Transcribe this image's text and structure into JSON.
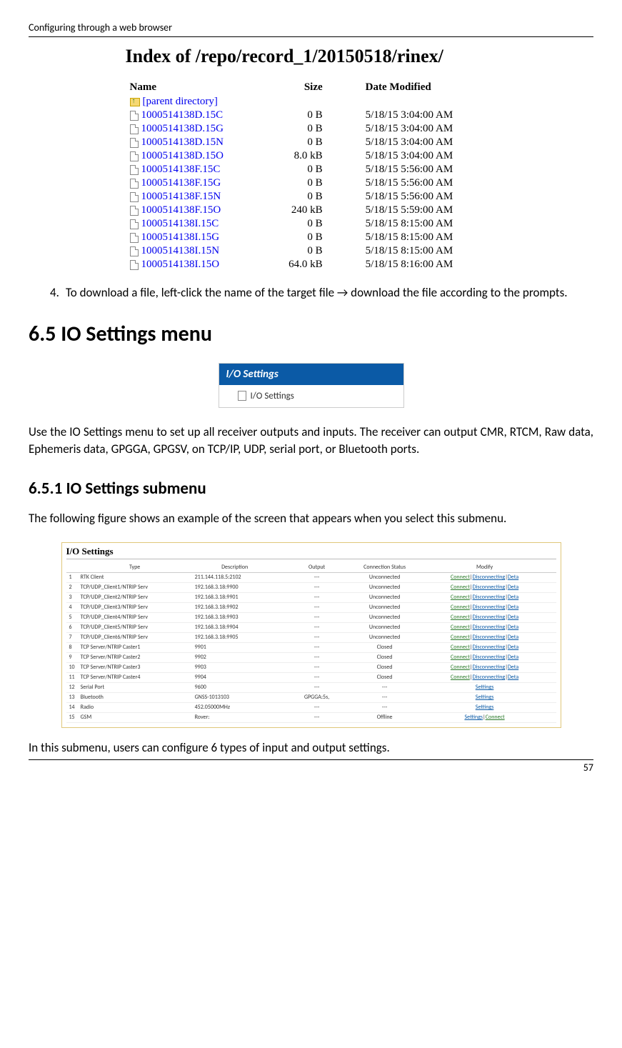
{
  "pageHeader": "Configuring through a web browser",
  "pageNumber": "57",
  "dirListing": {
    "title": "Index of /repo/record_1/20150518/rinex/",
    "headers": [
      "Name",
      "Size",
      "Date Modified"
    ],
    "parentLabel": "[parent directory]",
    "rows": [
      {
        "name": "1000514138D.15C",
        "size": "0 B",
        "date": "5/18/15 3:04:00 AM"
      },
      {
        "name": "1000514138D.15G",
        "size": "0 B",
        "date": "5/18/15 3:04:00 AM"
      },
      {
        "name": "1000514138D.15N",
        "size": "0 B",
        "date": "5/18/15 3:04:00 AM"
      },
      {
        "name": "1000514138D.15O",
        "size": "8.0 kB",
        "date": "5/18/15 3:04:00 AM"
      },
      {
        "name": "1000514138F.15C",
        "size": "0 B",
        "date": "5/18/15 5:56:00 AM"
      },
      {
        "name": "1000514138F.15G",
        "size": "0 B",
        "date": "5/18/15 5:56:00 AM"
      },
      {
        "name": "1000514138F.15N",
        "size": "0 B",
        "date": "5/18/15 5:56:00 AM"
      },
      {
        "name": "1000514138F.15O",
        "size": "240 kB",
        "date": "5/18/15 5:59:00 AM"
      },
      {
        "name": "1000514138I.15C",
        "size": "0 B",
        "date": "5/18/15 8:15:00 AM"
      },
      {
        "name": "1000514138I.15G",
        "size": "0 B",
        "date": "5/18/15 8:15:00 AM"
      },
      {
        "name": "1000514138I.15N",
        "size": "0 B",
        "date": "5/18/15 8:15:00 AM"
      },
      {
        "name": "1000514138I.15O",
        "size": "64.0 kB",
        "date": "5/18/15 8:16:00 AM"
      }
    ]
  },
  "step4": {
    "num": "4.",
    "text": "To download a file, left-click the name of the target file → download the file according to the prompts."
  },
  "section": "6.5  IO Settings menu",
  "ioMenu": {
    "header": "I/O Settings",
    "item": "I/O Settings"
  },
  "paraIntro": "Use the IO Settings menu to set up all receiver outputs and inputs. The receiver can output CMR, RTCM, Raw data, Ephemeris data, GPGGA, GPGSV, on TCP/IP, UDP, serial port, or Bluetooth ports.",
  "subsection": "6.5.1  IO Settings submenu",
  "paraSub": "The following figure shows an example of the screen that appears when you select this submenu.",
  "ioShot": {
    "title": "I/O Settings",
    "headers": [
      "",
      "Type",
      "Description",
      "Output",
      "Connection Status",
      "Modify"
    ],
    "rows": [
      {
        "n": "1",
        "type": "RTK Client",
        "desc": "211.144.118.5:2102",
        "out": "---",
        "stat": "Unconnected",
        "mod": "cd"
      },
      {
        "n": "2",
        "type": "TCP/UDP_Client1/NTRIP Serv",
        "desc": "192.168.3.18:9900",
        "out": "---",
        "stat": "Unconnected",
        "mod": "cd"
      },
      {
        "n": "3",
        "type": "TCP/UDP_Client2/NTRIP Serv",
        "desc": "192.168.3.18:9901",
        "out": "---",
        "stat": "Unconnected",
        "mod": "cd"
      },
      {
        "n": "4",
        "type": "TCP/UDP_Client3/NTRIP Serv",
        "desc": "192.168.3.18:9902",
        "out": "---",
        "stat": "Unconnected",
        "mod": "cd"
      },
      {
        "n": "5",
        "type": "TCP/UDP_Client4/NTRIP Serv",
        "desc": "192.168.3.18:9903",
        "out": "---",
        "stat": "Unconnected",
        "mod": "cd"
      },
      {
        "n": "6",
        "type": "TCP/UDP_Client5/NTRIP Serv",
        "desc": "192.168.3.18:9904",
        "out": "---",
        "stat": "Unconnected",
        "mod": "cd"
      },
      {
        "n": "7",
        "type": "TCP/UDP_Client6/NTRIP Serv",
        "desc": "192.168.3.18:9905",
        "out": "---",
        "stat": "Unconnected",
        "mod": "cd"
      },
      {
        "n": "8",
        "type": "TCP Server/NTRIP Caster1",
        "desc": "9901",
        "out": "---",
        "stat": "Closed",
        "mod": "cd"
      },
      {
        "n": "9",
        "type": "TCP Server/NTRIP Caster2",
        "desc": "9902",
        "out": "---",
        "stat": "Closed",
        "mod": "cd"
      },
      {
        "n": "10",
        "type": "TCP Server/NTRIP Caster3",
        "desc": "9903",
        "out": "---",
        "stat": "Closed",
        "mod": "cd"
      },
      {
        "n": "11",
        "type": "TCP Server/NTRIP Caster4",
        "desc": "9904",
        "out": "---",
        "stat": "Closed",
        "mod": "cd"
      },
      {
        "n": "12",
        "type": "Serial Port",
        "desc": "9600",
        "out": "---",
        "stat": "---",
        "mod": "s"
      },
      {
        "n": "13",
        "type": "Bluetooth",
        "desc": "GNSS-1013103",
        "out": "GPGGA:5s,",
        "stat": "---",
        "mod": "s"
      },
      {
        "n": "14",
        "type": "Radio",
        "desc": "452.05000MHz",
        "out": "---",
        "stat": "---",
        "mod": "s"
      },
      {
        "n": "15",
        "type": "GSM",
        "desc": "Rover:",
        "out": "---",
        "stat": "Offline",
        "mod": "sc"
      }
    ],
    "links": {
      "connect": "Connect",
      "disconnecting": "Disconnecting",
      "deta": "Deta",
      "settings": "Settings"
    }
  },
  "paraEnd": "In this submenu, users can configure 6 types of input and output settings."
}
